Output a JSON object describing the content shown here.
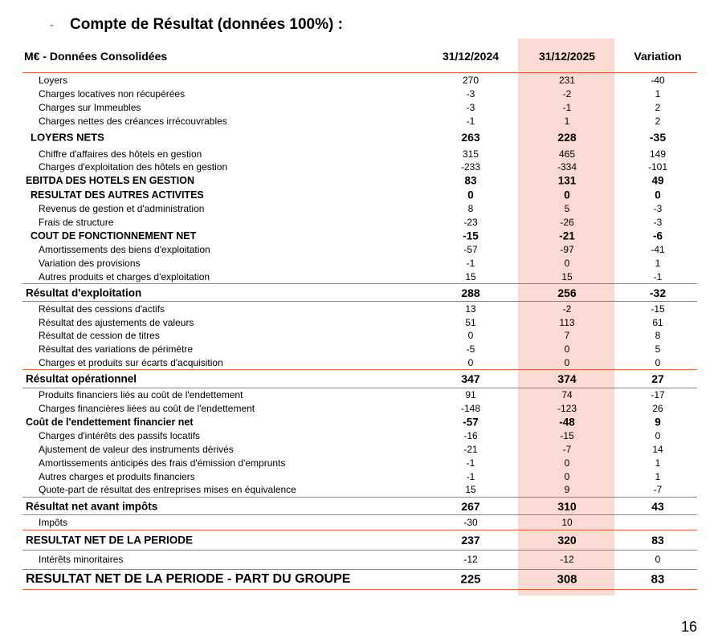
{
  "title": {
    "bullet": "-",
    "text": "Compte de Résultat (données 100%) :"
  },
  "header": {
    "label": "M€ - Données Consolidées",
    "col1": "31/12/2024",
    "col2": "31/12/2025",
    "col3": "Variation"
  },
  "rows": [
    {
      "kind": "item",
      "label": "Loyers",
      "v": [
        "270",
        "231",
        "-40"
      ]
    },
    {
      "kind": "item",
      "label": "Charges locatives non récupérées",
      "v": [
        "-3",
        "-2",
        "1"
      ]
    },
    {
      "kind": "item",
      "label": "Charges sur Immeubles",
      "v": [
        "-3",
        "-1",
        "2"
      ]
    },
    {
      "kind": "item",
      "label": "Charges nettes des créances irrécouvrables",
      "v": [
        "-1",
        "1",
        "2"
      ]
    },
    {
      "kind": "big",
      "label": "LOYERS NETS",
      "v": [
        "263",
        "228",
        "-35"
      ]
    },
    {
      "kind": "item",
      "label": "Chiffre d'affaires des hôtels en gestion",
      "v": [
        "315",
        "465",
        "149"
      ]
    },
    {
      "kind": "item",
      "label": "Charges d'exploitation des hôtels en gestion",
      "v": [
        "-233",
        "-334",
        "-101"
      ]
    },
    {
      "kind": "sub coutnet",
      "label": "EBITDA DES HOTELS EN GESTION",
      "v": [
        "83",
        "131",
        "49"
      ]
    },
    {
      "kind": "sub",
      "label": "RESULTAT DES AUTRES ACTIVITES",
      "v": [
        "0",
        "0",
        "0"
      ]
    },
    {
      "kind": "item",
      "label": "Revenus de gestion et d'administration",
      "v": [
        "8",
        "5",
        "-3"
      ]
    },
    {
      "kind": "item",
      "label": "Frais de structure",
      "v": [
        "-23",
        "-26",
        "-3"
      ]
    },
    {
      "kind": "sub",
      "label": "COUT DE FONCTIONNEMENT NET",
      "v": [
        "-15",
        "-21",
        "-6"
      ]
    },
    {
      "kind": "item",
      "label": "Amortissements des biens d'exploitation",
      "v": [
        "-57",
        "-97",
        "-41"
      ]
    },
    {
      "kind": "item",
      "label": "Variation des provisions",
      "v": [
        "-1",
        "0",
        "1"
      ]
    },
    {
      "kind": "item",
      "label": "Autres produits et charges d'exploitation",
      "v": [
        "15",
        "15",
        "-1"
      ]
    },
    {
      "kind": "major bt bb",
      "label": "Résultat d'exploitation",
      "v": [
        "288",
        "256",
        "-32"
      ]
    },
    {
      "kind": "item",
      "label": "Résultat des cessions d'actifs",
      "v": [
        "13",
        "-2",
        "-15"
      ]
    },
    {
      "kind": "item",
      "label": "Résultat des ajustements de valeurs",
      "v": [
        "51",
        "113",
        "61"
      ]
    },
    {
      "kind": "item",
      "label": "Résultat de cession de titres",
      "v": [
        "0",
        "7",
        "8"
      ]
    },
    {
      "kind": "item",
      "label": "Résultat des variations de périmètre",
      "v": [
        "-5",
        "0",
        "5"
      ]
    },
    {
      "kind": "item",
      "label": "Charges et produits sur écarts d'acquisition",
      "v": [
        "0",
        "0",
        "0"
      ]
    },
    {
      "kind": "major bt bb",
      "label": "Résultat opérationnel",
      "v": [
        "347",
        "374",
        "27"
      ]
    },
    {
      "kind": "item",
      "label": "Produits financiers liés au coût de l'endettement",
      "v": [
        "91",
        "74",
        "-17"
      ]
    },
    {
      "kind": "item",
      "label": "Charges financières liées au coût de l'endettement",
      "v": [
        "-148",
        "-123",
        "26"
      ]
    },
    {
      "kind": "sub coutnet",
      "label": "Coût de l'endettement financier net",
      "v": [
        "-57",
        "-48",
        "9"
      ]
    },
    {
      "kind": "item",
      "label": "Charges d'intérêts des passifs locatifs",
      "v": [
        "-16",
        "-15",
        "0"
      ]
    },
    {
      "kind": "item",
      "label": "Ajustement de valeur des instruments dérivés",
      "v": [
        "-21",
        "-7",
        "14"
      ]
    },
    {
      "kind": "item",
      "label": "Amortissements anticipés des frais d'émission d'emprunts",
      "v": [
        "-1",
        "0",
        "1"
      ]
    },
    {
      "kind": "item",
      "label": "Autres charges et produits financiers",
      "v": [
        "-1",
        "0",
        "1"
      ]
    },
    {
      "kind": "item",
      "label": "Quote-part de résultat des entreprises mises en équivalence",
      "v": [
        "15",
        "9",
        "-7"
      ]
    },
    {
      "kind": "major bt bb",
      "label": "Résultat net avant impôts",
      "v": [
        "267",
        "310",
        "43"
      ]
    },
    {
      "kind": "item boxed",
      "label": "Impôts",
      "v": [
        "-30",
        "10",
        ""
      ]
    },
    {
      "kind": "major bt bb big2",
      "label": "RESULTAT NET DE LA PERIODE",
      "v": [
        "237",
        "320",
        "83"
      ]
    },
    {
      "kind": "item tall",
      "label": "Intérêts minoritaires",
      "v": [
        "-12",
        "-12",
        "0"
      ]
    },
    {
      "kind": "final bt bb",
      "label": "RESULTAT NET DE LA PERIODE - PART DU GROUPE",
      "v": [
        "225",
        "308",
        "83"
      ]
    }
  ],
  "page_number": "16",
  "colors": {
    "accent_line": "#e4603f",
    "highlight_column": "#fadbd4"
  }
}
